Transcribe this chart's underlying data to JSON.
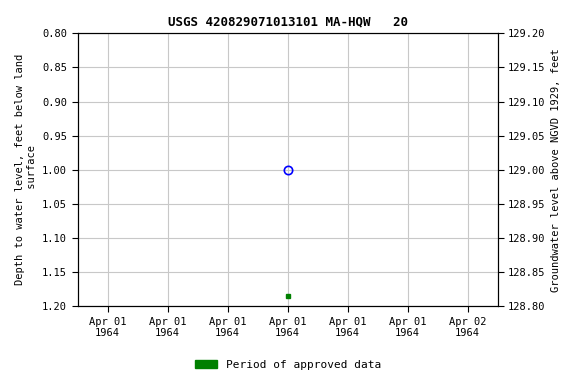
{
  "title": "USGS 420829071013101 MA-HQW   20",
  "ylabel_left": "Depth to water level, feet below land\n surface",
  "ylabel_right": "Groundwater level above NGVD 1929, feet",
  "ylim_left_top": 0.8,
  "ylim_left_bottom": 1.2,
  "ylim_right_top": 129.2,
  "ylim_right_bottom": 128.8,
  "yticks_left": [
    0.8,
    0.85,
    0.9,
    0.95,
    1.0,
    1.05,
    1.1,
    1.15,
    1.2
  ],
  "yticks_right": [
    129.2,
    129.15,
    129.1,
    129.05,
    129.0,
    128.95,
    128.9,
    128.85,
    128.8
  ],
  "data_point_x": 3.5,
  "data_point_y": 1.0,
  "data_point_color": "#0000ff",
  "data_point_marker": "o",
  "approved_point_x": 3.5,
  "approved_point_y": 1.185,
  "approved_point_color": "#008000",
  "approved_point_marker": "s",
  "approved_point_size": 3,
  "xlim": [
    0,
    7
  ],
  "xtick_labels": [
    "Apr 01\n1964",
    "Apr 01\n1964",
    "Apr 01\n1964",
    "Apr 01\n1964",
    "Apr 01\n1964",
    "Apr 01\n1964",
    "Apr 02\n1964"
  ],
  "xtick_positions": [
    0.5,
    1.5,
    2.5,
    3.5,
    4.5,
    5.5,
    6.5
  ],
  "grid_color": "#c8c8c8",
  "background_color": "#ffffff",
  "legend_label": "Period of approved data",
  "legend_color": "#008000"
}
